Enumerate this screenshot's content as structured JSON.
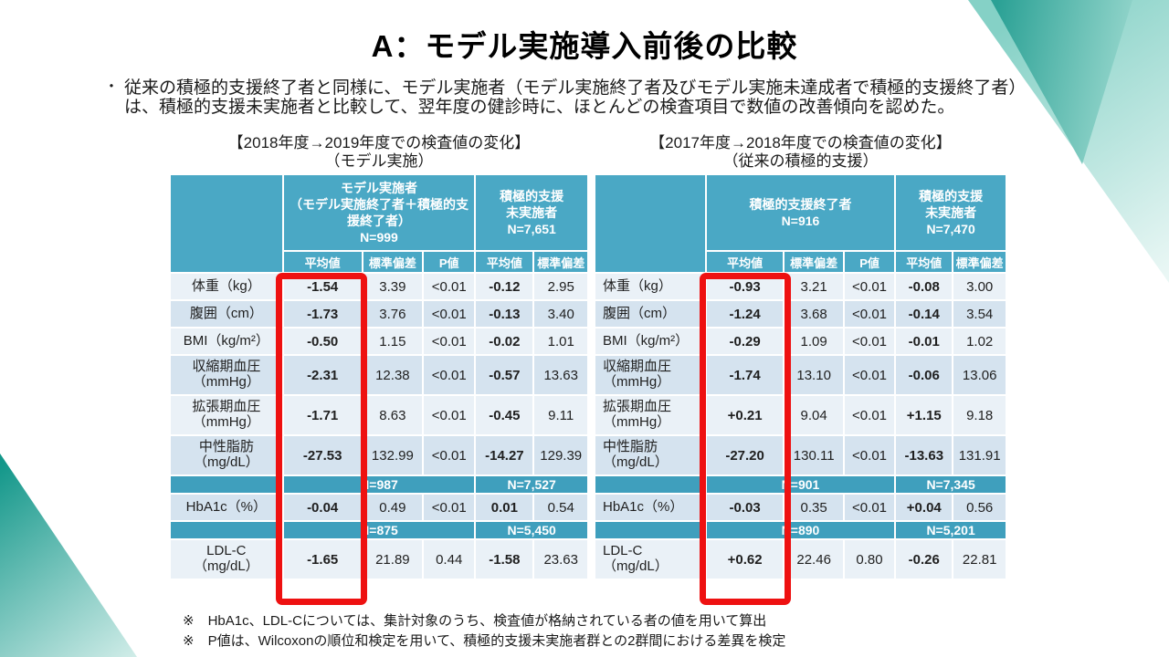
{
  "page": {
    "title": "A：モデル実施導入前後の比較",
    "bullet_marker": "・",
    "bullet": "従来の積極的支援終了者と同様に、モデル実施者（モデル実施終了者及びモデル実施未達成者で積極的支援終了者）は、積極的支援未実施者と比較して、翌年度の健診時に、ほとんどの検査項目で数値の改善傾向を認めた。",
    "notes": [
      "※　HbA1c、LDL-Cについては、集計対象のうち、検査値が格納されている者の値を用いて算出",
      "※　P値は、Wilcoxonの順位和検定を用いて、積極的支援未実施者群との2群間における差異を検定"
    ]
  },
  "colors": {
    "header_teal": "#4aa8c5",
    "band_teal": "#3f9fbd",
    "stripe_light": "#eaf1f7",
    "stripe_dark": "#d5e3ef",
    "highlight_red": "#ee1111",
    "deco_dark_start": "#2ba195",
    "deco_dark_end": "#93d5cb",
    "deco_light_start": "#85d1c6",
    "deco_light_end": "#eaf7f5",
    "deco_bl_start": "#13978a",
    "deco_bl_end": "#d8f0ec"
  },
  "tables": [
    {
      "caption_line1": "【2018年度→2019年度での検査値の変化】",
      "caption_line2": "（モデル実施）",
      "group1_header": "モデル実施者\n（モデル実施終了者＋積極的支援終了者）\nN=999",
      "group2_header": "積極的支援\n未実施者\nN=7,651",
      "subheaders": [
        "平均値",
        "標準偏差",
        "P値",
        "平均値",
        "標準偏差"
      ],
      "rows": [
        {
          "label": "体重（kg）",
          "shade": "light",
          "cells": [
            "-1.54",
            "3.39",
            "<0.01",
            "-0.12",
            "2.95"
          ]
        },
        {
          "label": "腹囲（cm）",
          "shade": "dark",
          "cells": [
            "-1.73",
            "3.76",
            "<0.01",
            "-0.13",
            "3.40"
          ]
        },
        {
          "label": "BMI（kg/m²）",
          "shade": "light",
          "cells": [
            "-0.50",
            "1.15",
            "<0.01",
            "-0.02",
            "1.01"
          ]
        },
        {
          "label": "収縮期血圧\n（mmHg）",
          "shade": "dark",
          "cells": [
            "-2.31",
            "12.38",
            "<0.01",
            "-0.57",
            "13.63"
          ]
        },
        {
          "label": "拡張期血圧\n（mmHg）",
          "shade": "light",
          "cells": [
            "-1.71",
            "8.63",
            "<0.01",
            "-0.45",
            "9.11"
          ]
        },
        {
          "label": "中性脂肪\n（mg/dL）",
          "shade": "dark",
          "cells": [
            "-27.53",
            "132.99",
            "<0.01",
            "-14.27",
            "129.39"
          ]
        },
        {
          "n1": "N=987",
          "n2": "N=7,527"
        },
        {
          "label": "HbA1c（%）",
          "shade": "dark",
          "cells": [
            "-0.04",
            "0.49",
            "<0.01",
            "0.01",
            "0.54"
          ]
        },
        {
          "n1": "N=875",
          "n2": "N=5,450"
        },
        {
          "label": "LDL-C\n（mg/dL）",
          "shade": "light",
          "cells": [
            "-1.65",
            "21.89",
            "0.44",
            "-1.58",
            "23.63"
          ]
        }
      ]
    },
    {
      "caption_line1": "【2017年度→2018年度での検査値の変化】",
      "caption_line2": "（従来の積極的支援）",
      "group1_header": "積極的支援終了者\nN=916",
      "group2_header": "積極的支援\n未実施者\nN=7,470",
      "subheaders": [
        "平均値",
        "標準偏差",
        "P値",
        "平均値",
        "標準偏差"
      ],
      "rows": [
        {
          "label": "体重（kg）",
          "shade": "light",
          "cells": [
            "-0.93",
            "3.21",
            "<0.01",
            "-0.08",
            "3.00"
          ]
        },
        {
          "label": "腹囲（cm）",
          "shade": "dark",
          "cells": [
            "-1.24",
            "3.68",
            "<0.01",
            "-0.14",
            "3.54"
          ]
        },
        {
          "label": "BMI（kg/m²）",
          "shade": "light",
          "cells": [
            "-0.29",
            "1.09",
            "<0.01",
            "-0.01",
            "1.02"
          ]
        },
        {
          "label": "収縮期血圧\n（mmHg）",
          "shade": "dark",
          "cells": [
            "-1.74",
            "13.10",
            "<0.01",
            "-0.06",
            "13.06"
          ]
        },
        {
          "label": "拡張期血圧\n（mmHg）",
          "shade": "light",
          "cells": [
            "+0.21",
            "9.04",
            "<0.01",
            "+1.15",
            "9.18"
          ]
        },
        {
          "label": "中性脂肪\n（mg/dL）",
          "shade": "dark",
          "cells": [
            "-27.20",
            "130.11",
            "<0.01",
            "-13.63",
            "131.91"
          ]
        },
        {
          "n1": "N=901",
          "n2": "N=7,345"
        },
        {
          "label": "HbA1c（%）",
          "shade": "dark",
          "cells": [
            "-0.03",
            "0.35",
            "<0.01",
            "+0.04",
            "0.56"
          ]
        },
        {
          "n1": "N=890",
          "n2": "N=5,201"
        },
        {
          "label": "LDL-C\n（mg/dL）",
          "shade": "light",
          "cells": [
            "+0.62",
            "22.46",
            "0.80",
            "-0.26",
            "22.81"
          ]
        }
      ]
    }
  ]
}
